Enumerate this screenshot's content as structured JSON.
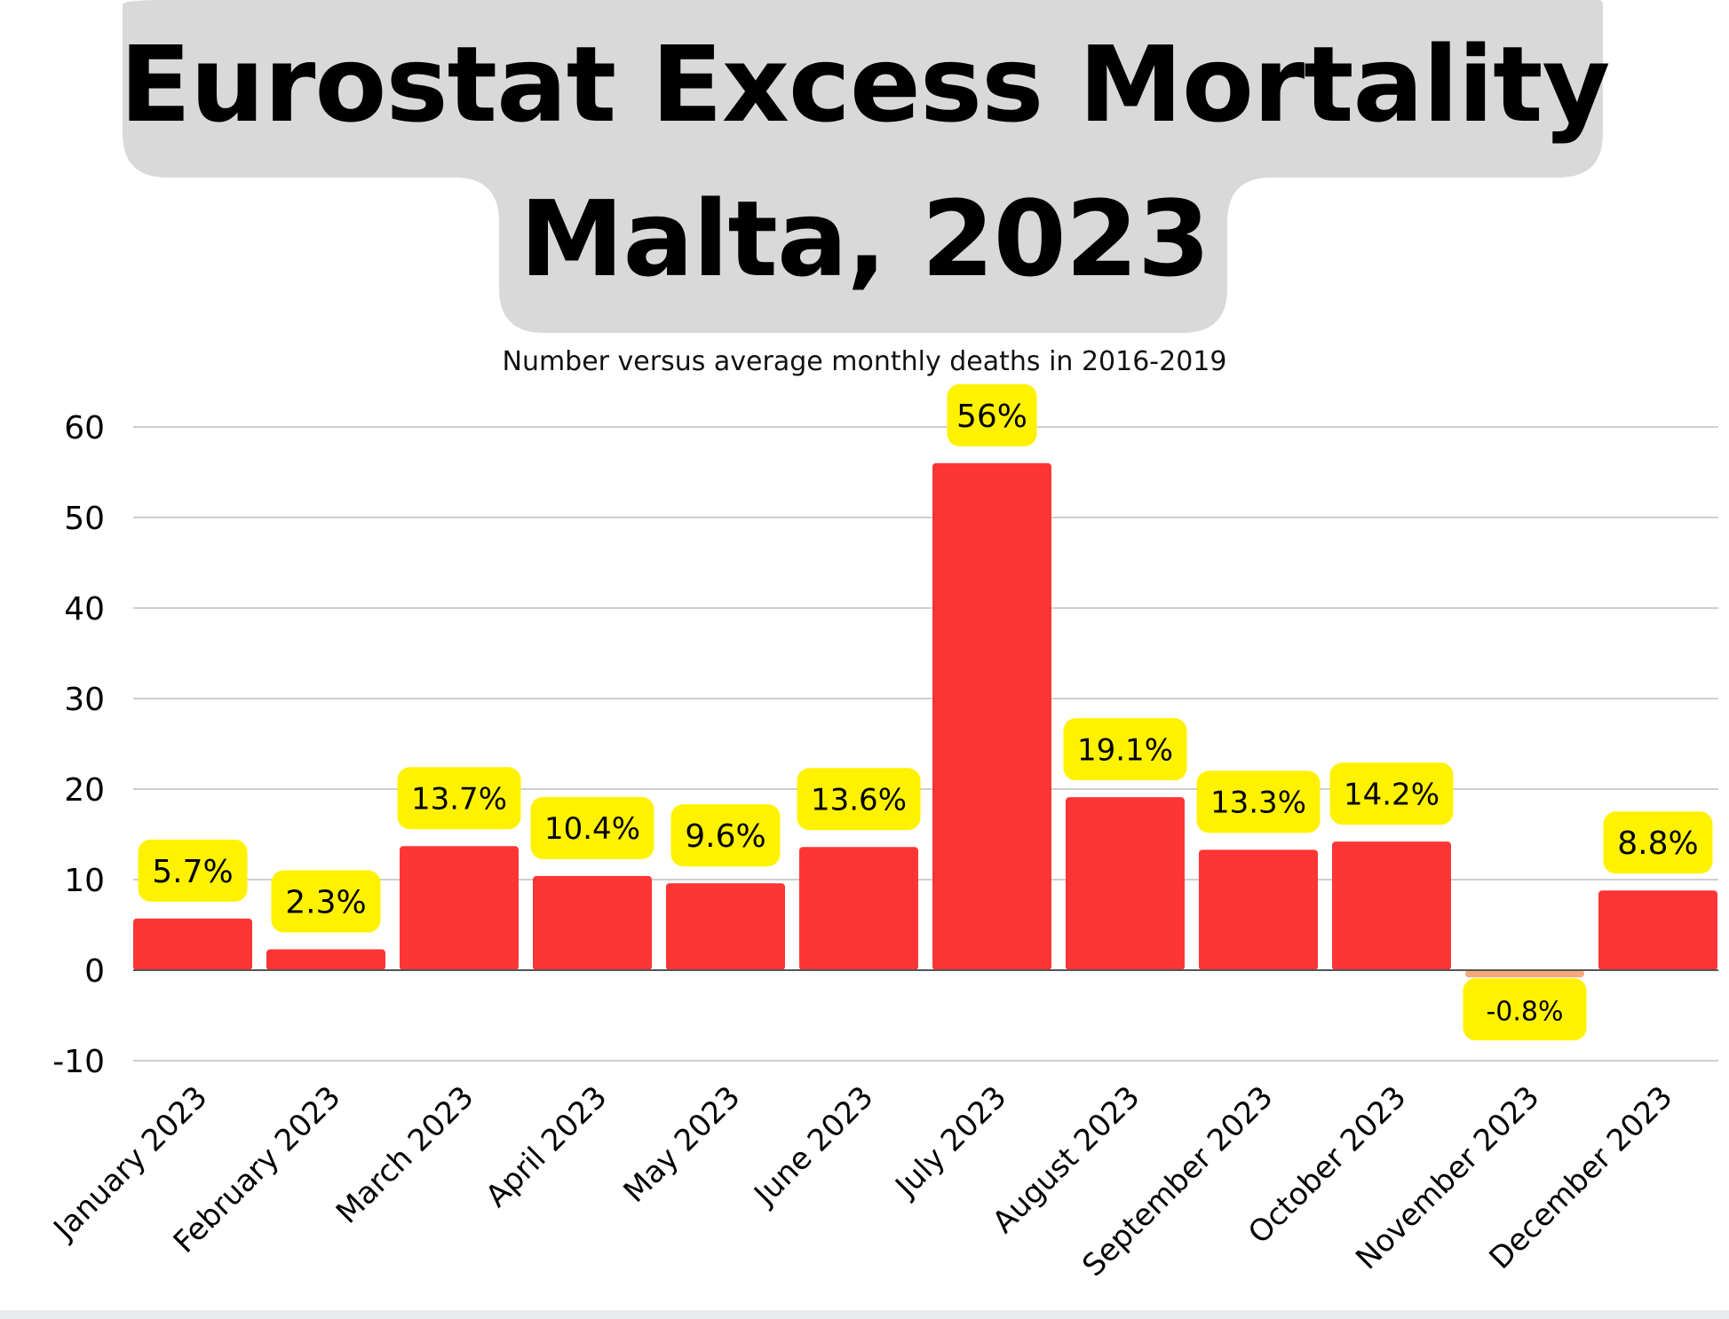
{
  "title": {
    "line1": "Eurostat Excess Mortality",
    "line2": "Malta, 2023"
  },
  "colors": {
    "title_background": "#d9d9d9",
    "bar": "#fe3535",
    "label_background": "#fff200",
    "negative_marker": "#f5a97a",
    "grid": "#cfcfcf",
    "baseline": "#555555",
    "text": "#000000"
  },
  "chart_data": {
    "type": "bar",
    "title": "Eurostat Excess Mortality Malta, 2023",
    "subtitle": "Number versus average monthly deaths in 2016-2019",
    "xlabel": "",
    "ylabel": "",
    "ylim": [
      -10,
      60
    ],
    "yticks": [
      60,
      50,
      40,
      30,
      20,
      10,
      0,
      -10
    ],
    "grid": true,
    "categories": [
      "January 2023",
      "February 2023",
      "March 2023",
      "April 2023",
      "May 2023",
      "June 2023",
      "July 2023",
      "August 2023",
      "September 2023",
      "October 2023",
      "November 2023",
      "December 2023"
    ],
    "values": [
      5.7,
      2.3,
      13.7,
      10.4,
      9.6,
      13.6,
      56,
      19.1,
      13.3,
      14.2,
      -0.8,
      8.8
    ],
    "data_labels": [
      "5.7%",
      "2.3%",
      "13.7%",
      "10.4%",
      "9.6%",
      "13.6%",
      "56%",
      "19.1%",
      "13.3%",
      "14.2%",
      "-0.8%",
      "8.8%"
    ]
  }
}
